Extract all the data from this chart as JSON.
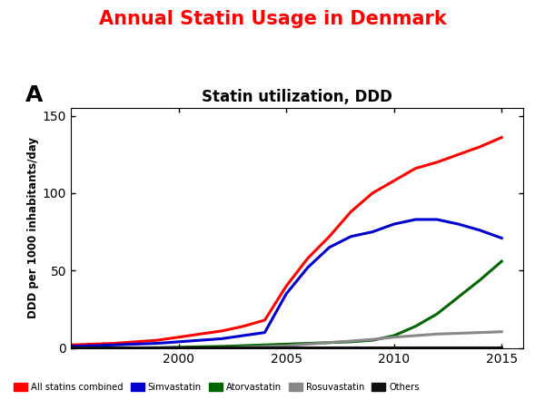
{
  "title": "Annual Statin Usage in Denmark",
  "subtitle": "Statin utilization, DDD",
  "panel_label": "A",
  "ylabel": "DDD per 1000 inhabitants/day",
  "xlim": [
    1995,
    2016
  ],
  "ylim": [
    0,
    155
  ],
  "yticks": [
    0,
    50,
    100,
    150
  ],
  "xticks": [
    2000,
    2005,
    2010,
    2015
  ],
  "years": [
    1995,
    1996,
    1997,
    1998,
    1999,
    2000,
    2001,
    2002,
    2003,
    2004,
    2005,
    2006,
    2007,
    2008,
    2009,
    2010,
    2011,
    2012,
    2013,
    2014,
    2015
  ],
  "all_statins": [
    2,
    2.5,
    3,
    4,
    5,
    7,
    9,
    11,
    14,
    18,
    40,
    58,
    72,
    88,
    100,
    108,
    116,
    120,
    125,
    130,
    136
  ],
  "simvastatin": [
    1,
    1.5,
    2,
    2.5,
    3,
    4,
    5,
    6,
    8,
    10,
    35,
    52,
    65,
    72,
    75,
    80,
    83,
    83,
    80,
    76,
    71
  ],
  "atorvastatin": [
    0,
    0,
    0,
    0,
    0.2,
    0.5,
    0.8,
    1,
    1.5,
    2,
    2.5,
    3,
    3.5,
    4,
    5,
    8,
    14,
    22,
    33,
    44,
    56
  ],
  "rosuvastatin": [
    0,
    0,
    0,
    0,
    0,
    0,
    0,
    0,
    0.5,
    1,
    1.5,
    2.5,
    3.5,
    4.5,
    5.5,
    7,
    8,
    9,
    9.5,
    10,
    10.5
  ],
  "others": [
    0.5,
    0.5,
    0.5,
    0.5,
    0.5,
    0.5,
    0.5,
    0.5,
    0.5,
    0.5,
    0.5,
    0.5,
    0.5,
    0.5,
    0.5,
    0.5,
    0.5,
    0.5,
    0.5,
    0.5,
    0.5
  ],
  "colors": {
    "all_statins": "#ff0000",
    "simvastatin": "#0000cc",
    "atorvastatin": "#006600",
    "rosuvastatin": "#888888",
    "others": "#111111"
  },
  "legend_labels": [
    "All statins combined",
    "Simvastatin",
    "Atorvastatin",
    "Rosuvastatin",
    "Others"
  ],
  "title_color": "#ff0000",
  "title_fontsize": 15,
  "subtitle_fontsize": 12,
  "linewidth": 2.2,
  "bg_color": "#ffffff"
}
